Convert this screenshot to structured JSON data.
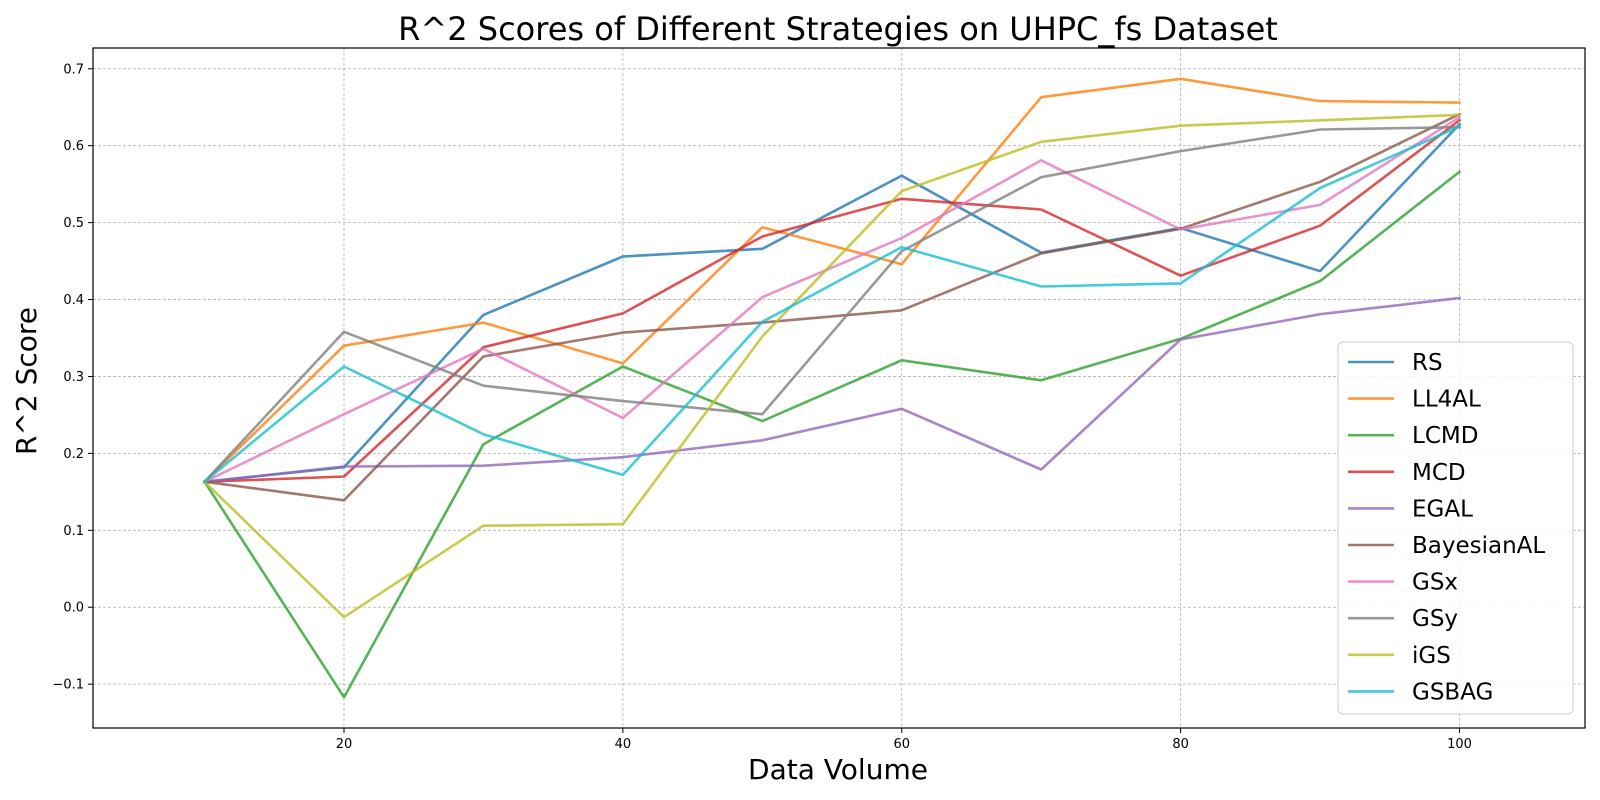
{
  "chart_data": {
    "type": "line",
    "title": "R^2 Scores of Different Strategies on UHPC_fs Dataset",
    "xlabel": "Data Volume",
    "ylabel": "R^2 Score",
    "xlim": [
      2,
      109
    ],
    "ylim": [
      -0.157,
      0.727
    ],
    "xticks": [
      20,
      40,
      60,
      80,
      100
    ],
    "xtick_labels": [
      "20",
      "40",
      "60",
      "80",
      "100"
    ],
    "yticks": [
      -0.1,
      0.0,
      0.1,
      0.2,
      0.3,
      0.4,
      0.5,
      0.6,
      0.7
    ],
    "ytick_labels": [
      "−0.1",
      "0.0",
      "0.1",
      "0.2",
      "0.3",
      "0.4",
      "0.5",
      "0.6",
      "0.7"
    ],
    "grid": true,
    "legend_position": "lower-right",
    "x": [
      10,
      20,
      30,
      40,
      50,
      60,
      70,
      80,
      90,
      100
    ],
    "series": [
      {
        "name": "RS",
        "color": "#1f77b4",
        "values": [
          0.163,
          0.182,
          0.38,
          0.456,
          0.466,
          0.561,
          0.461,
          0.493,
          0.437,
          0.628
        ]
      },
      {
        "name": "LL4AL",
        "color": "#ff7f0e",
        "values": [
          0.163,
          0.34,
          0.37,
          0.317,
          0.494,
          0.446,
          0.663,
          0.687,
          0.658,
          0.656
        ]
      },
      {
        "name": "LCMD",
        "color": "#2ca02c",
        "values": [
          0.163,
          -0.117,
          0.212,
          0.313,
          0.242,
          0.321,
          0.295,
          0.349,
          0.424,
          0.566
        ]
      },
      {
        "name": "MCD",
        "color": "#d62728",
        "values": [
          0.163,
          0.17,
          0.338,
          0.382,
          0.482,
          0.531,
          0.517,
          0.431,
          0.496,
          0.633
        ]
      },
      {
        "name": "EGAL",
        "color": "#9467bd",
        "values": [
          0.163,
          0.183,
          0.184,
          0.195,
          0.217,
          0.258,
          0.179,
          0.348,
          0.381,
          0.402
        ]
      },
      {
        "name": "BayesianAL",
        "color": "#8c564b",
        "values": [
          0.163,
          0.139,
          0.326,
          0.357,
          0.37,
          0.386,
          0.46,
          0.492,
          0.553,
          0.641
        ]
      },
      {
        "name": "GSx",
        "color": "#e377c2",
        "values": [
          0.163,
          0.251,
          0.336,
          0.246,
          0.403,
          0.48,
          0.581,
          0.491,
          0.523,
          0.637
        ]
      },
      {
        "name": "GSy",
        "color": "#7f7f7f",
        "values": [
          0.163,
          0.358,
          0.288,
          0.268,
          0.251,
          0.463,
          0.559,
          0.593,
          0.621,
          0.624
        ]
      },
      {
        "name": "iGS",
        "color": "#bcbd22",
        "values": [
          0.163,
          -0.013,
          0.106,
          0.108,
          0.352,
          0.541,
          0.605,
          0.626,
          0.633,
          0.64
        ]
      },
      {
        "name": "GSBAG",
        "color": "#17becf",
        "values": [
          0.163,
          0.313,
          0.225,
          0.172,
          0.371,
          0.468,
          0.417,
          0.421,
          0.545,
          0.625
        ]
      }
    ]
  }
}
